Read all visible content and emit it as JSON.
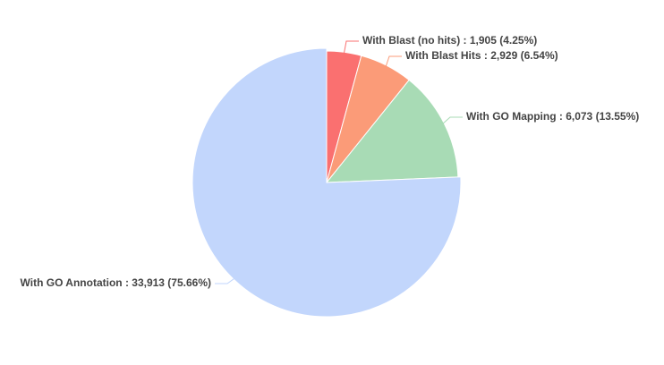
{
  "chart_data": {
    "type": "pie",
    "categories": [
      "With Blast (no hits) : 1,905 (4.25%)",
      "With Blast Hits : 2,929 (6.54%)",
      "With GO Mapping : 6,073 (13.55%)",
      "With GO Annotation : 33,913 (75.66%)"
    ],
    "values": [
      1905,
      2929,
      6073,
      33913
    ],
    "colors": [
      "#fa7070",
      "#fb9b78",
      "#a8dbb5",
      "#c2d6fc"
    ]
  }
}
